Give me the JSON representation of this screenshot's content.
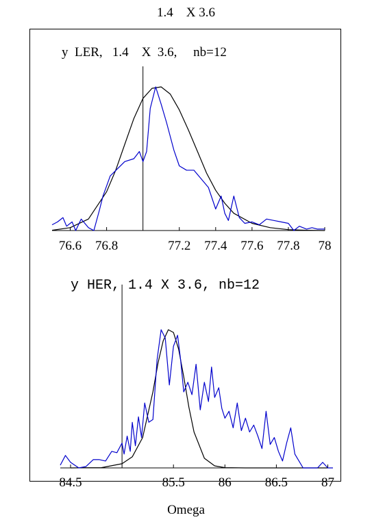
{
  "page_title": "1.4    X 3.6",
  "footer_xlabel": "Omega",
  "colors": {
    "fit": "#000000",
    "data": "#0000cc",
    "axis": "#000000"
  },
  "chart_data": [
    {
      "type": "line",
      "title": "y  LER,   1.4    X  3.6,     nb=12",
      "xlim": [
        76.5,
        78.0
      ],
      "xticks": [
        "76.6",
        "76.8",
        "77.2",
        "77.4",
        "77.6",
        "77.8",
        "78"
      ],
      "xtick_values": [
        76.6,
        76.8,
        77.2,
        77.4,
        77.6,
        77.8,
        78.0
      ],
      "vline_x": 77.0,
      "series": [
        {
          "kind": "fit",
          "x": [
            76.5,
            76.6,
            76.7,
            76.8,
            76.85,
            76.9,
            76.95,
            77.0,
            77.05,
            77.1,
            77.15,
            77.2,
            77.25,
            77.3,
            77.35,
            77.4,
            77.45,
            77.5,
            77.6,
            77.7,
            77.8,
            77.9,
            78.0
          ],
          "y": [
            0.002,
            0.02,
            0.08,
            0.27,
            0.42,
            0.6,
            0.78,
            0.92,
            0.99,
            1.0,
            0.95,
            0.84,
            0.7,
            0.55,
            0.4,
            0.28,
            0.19,
            0.12,
            0.05,
            0.02,
            0.006,
            0.002,
            0.0
          ]
        },
        {
          "kind": "data",
          "x": [
            76.5,
            76.53,
            76.56,
            76.58,
            76.61,
            76.63,
            76.66,
            76.7,
            76.73,
            76.76,
            76.78,
            76.82,
            76.86,
            76.9,
            76.95,
            76.98,
            77.0,
            77.02,
            77.04,
            77.07,
            77.1,
            77.13,
            77.17,
            77.2,
            77.24,
            77.28,
            77.32,
            77.36,
            77.4,
            77.43,
            77.45,
            77.47,
            77.5,
            77.53,
            77.56,
            77.6,
            77.64,
            77.68,
            77.72,
            77.76,
            77.8,
            77.83,
            77.86,
            77.9,
            77.93,
            77.96,
            78.0
          ],
          "y": [
            0.04,
            0.06,
            0.09,
            0.03,
            0.06,
            0.0,
            0.08,
            0.02,
            0.0,
            0.14,
            0.24,
            0.38,
            0.43,
            0.48,
            0.5,
            0.55,
            0.48,
            0.55,
            0.85,
            1.0,
            0.88,
            0.75,
            0.56,
            0.45,
            0.42,
            0.42,
            0.36,
            0.3,
            0.15,
            0.24,
            0.12,
            0.07,
            0.24,
            0.09,
            0.05,
            0.06,
            0.04,
            0.08,
            0.07,
            0.06,
            0.05,
            0.0,
            0.03,
            0.01,
            0.02,
            0.01,
            0.01
          ]
        }
      ]
    },
    {
      "type": "line",
      "title": "y HER, 1.4 X 3.6, nb=12",
      "xlim": [
        84.4,
        87.05
      ],
      "xticks": [
        "84.5",
        "85.5",
        "86",
        "86.5",
        "87"
      ],
      "xtick_values": [
        84.5,
        85.5,
        86.0,
        86.5,
        87.0
      ],
      "vline_x": 85.0,
      "series": [
        {
          "kind": "fit",
          "x": [
            84.5,
            84.8,
            85.0,
            85.1,
            85.2,
            85.3,
            85.35,
            85.4,
            85.45,
            85.5,
            85.55,
            85.6,
            85.65,
            85.7,
            85.8,
            85.9,
            86.0,
            86.2,
            86.5,
            87.0
          ],
          "y": [
            0.0,
            0.002,
            0.03,
            0.08,
            0.22,
            0.55,
            0.76,
            0.92,
            1.0,
            0.98,
            0.86,
            0.66,
            0.44,
            0.26,
            0.07,
            0.015,
            0.002,
            0.0,
            0.0,
            0.0
          ]
        },
        {
          "kind": "data",
          "x": [
            84.4,
            84.45,
            84.5,
            84.58,
            84.65,
            84.72,
            84.78,
            84.84,
            84.9,
            84.95,
            85.0,
            85.02,
            85.05,
            85.08,
            85.1,
            85.13,
            85.16,
            85.19,
            85.22,
            85.26,
            85.3,
            85.34,
            85.38,
            85.42,
            85.46,
            85.5,
            85.54,
            85.57,
            85.6,
            85.64,
            85.68,
            85.72,
            85.76,
            85.8,
            85.84,
            85.87,
            85.9,
            85.94,
            85.97,
            86.0,
            86.04,
            86.08,
            86.12,
            86.16,
            86.2,
            86.24,
            86.28,
            86.32,
            86.36,
            86.4,
            86.44,
            86.48,
            86.52,
            86.56,
            86.6,
            86.64,
            86.68,
            86.72,
            86.76,
            86.8,
            86.85,
            86.9,
            86.95,
            87.0,
            87.05
          ],
          "y": [
            0.02,
            0.09,
            0.04,
            0.0,
            0.01,
            0.06,
            0.06,
            0.05,
            0.12,
            0.11,
            0.18,
            0.1,
            0.23,
            0.12,
            0.33,
            0.16,
            0.37,
            0.22,
            0.47,
            0.33,
            0.35,
            0.78,
            1.0,
            0.94,
            0.6,
            0.88,
            0.96,
            0.78,
            0.55,
            0.62,
            0.53,
            0.75,
            0.42,
            0.62,
            0.48,
            0.73,
            0.51,
            0.58,
            0.43,
            0.36,
            0.41,
            0.29,
            0.47,
            0.27,
            0.36,
            0.26,
            0.31,
            0.23,
            0.14,
            0.41,
            0.17,
            0.22,
            0.12,
            0.05,
            0.18,
            0.29,
            0.1,
            0.05,
            0.0,
            0.0,
            0.0,
            0.0,
            0.04,
            0.0,
            0.0
          ]
        }
      ]
    }
  ]
}
